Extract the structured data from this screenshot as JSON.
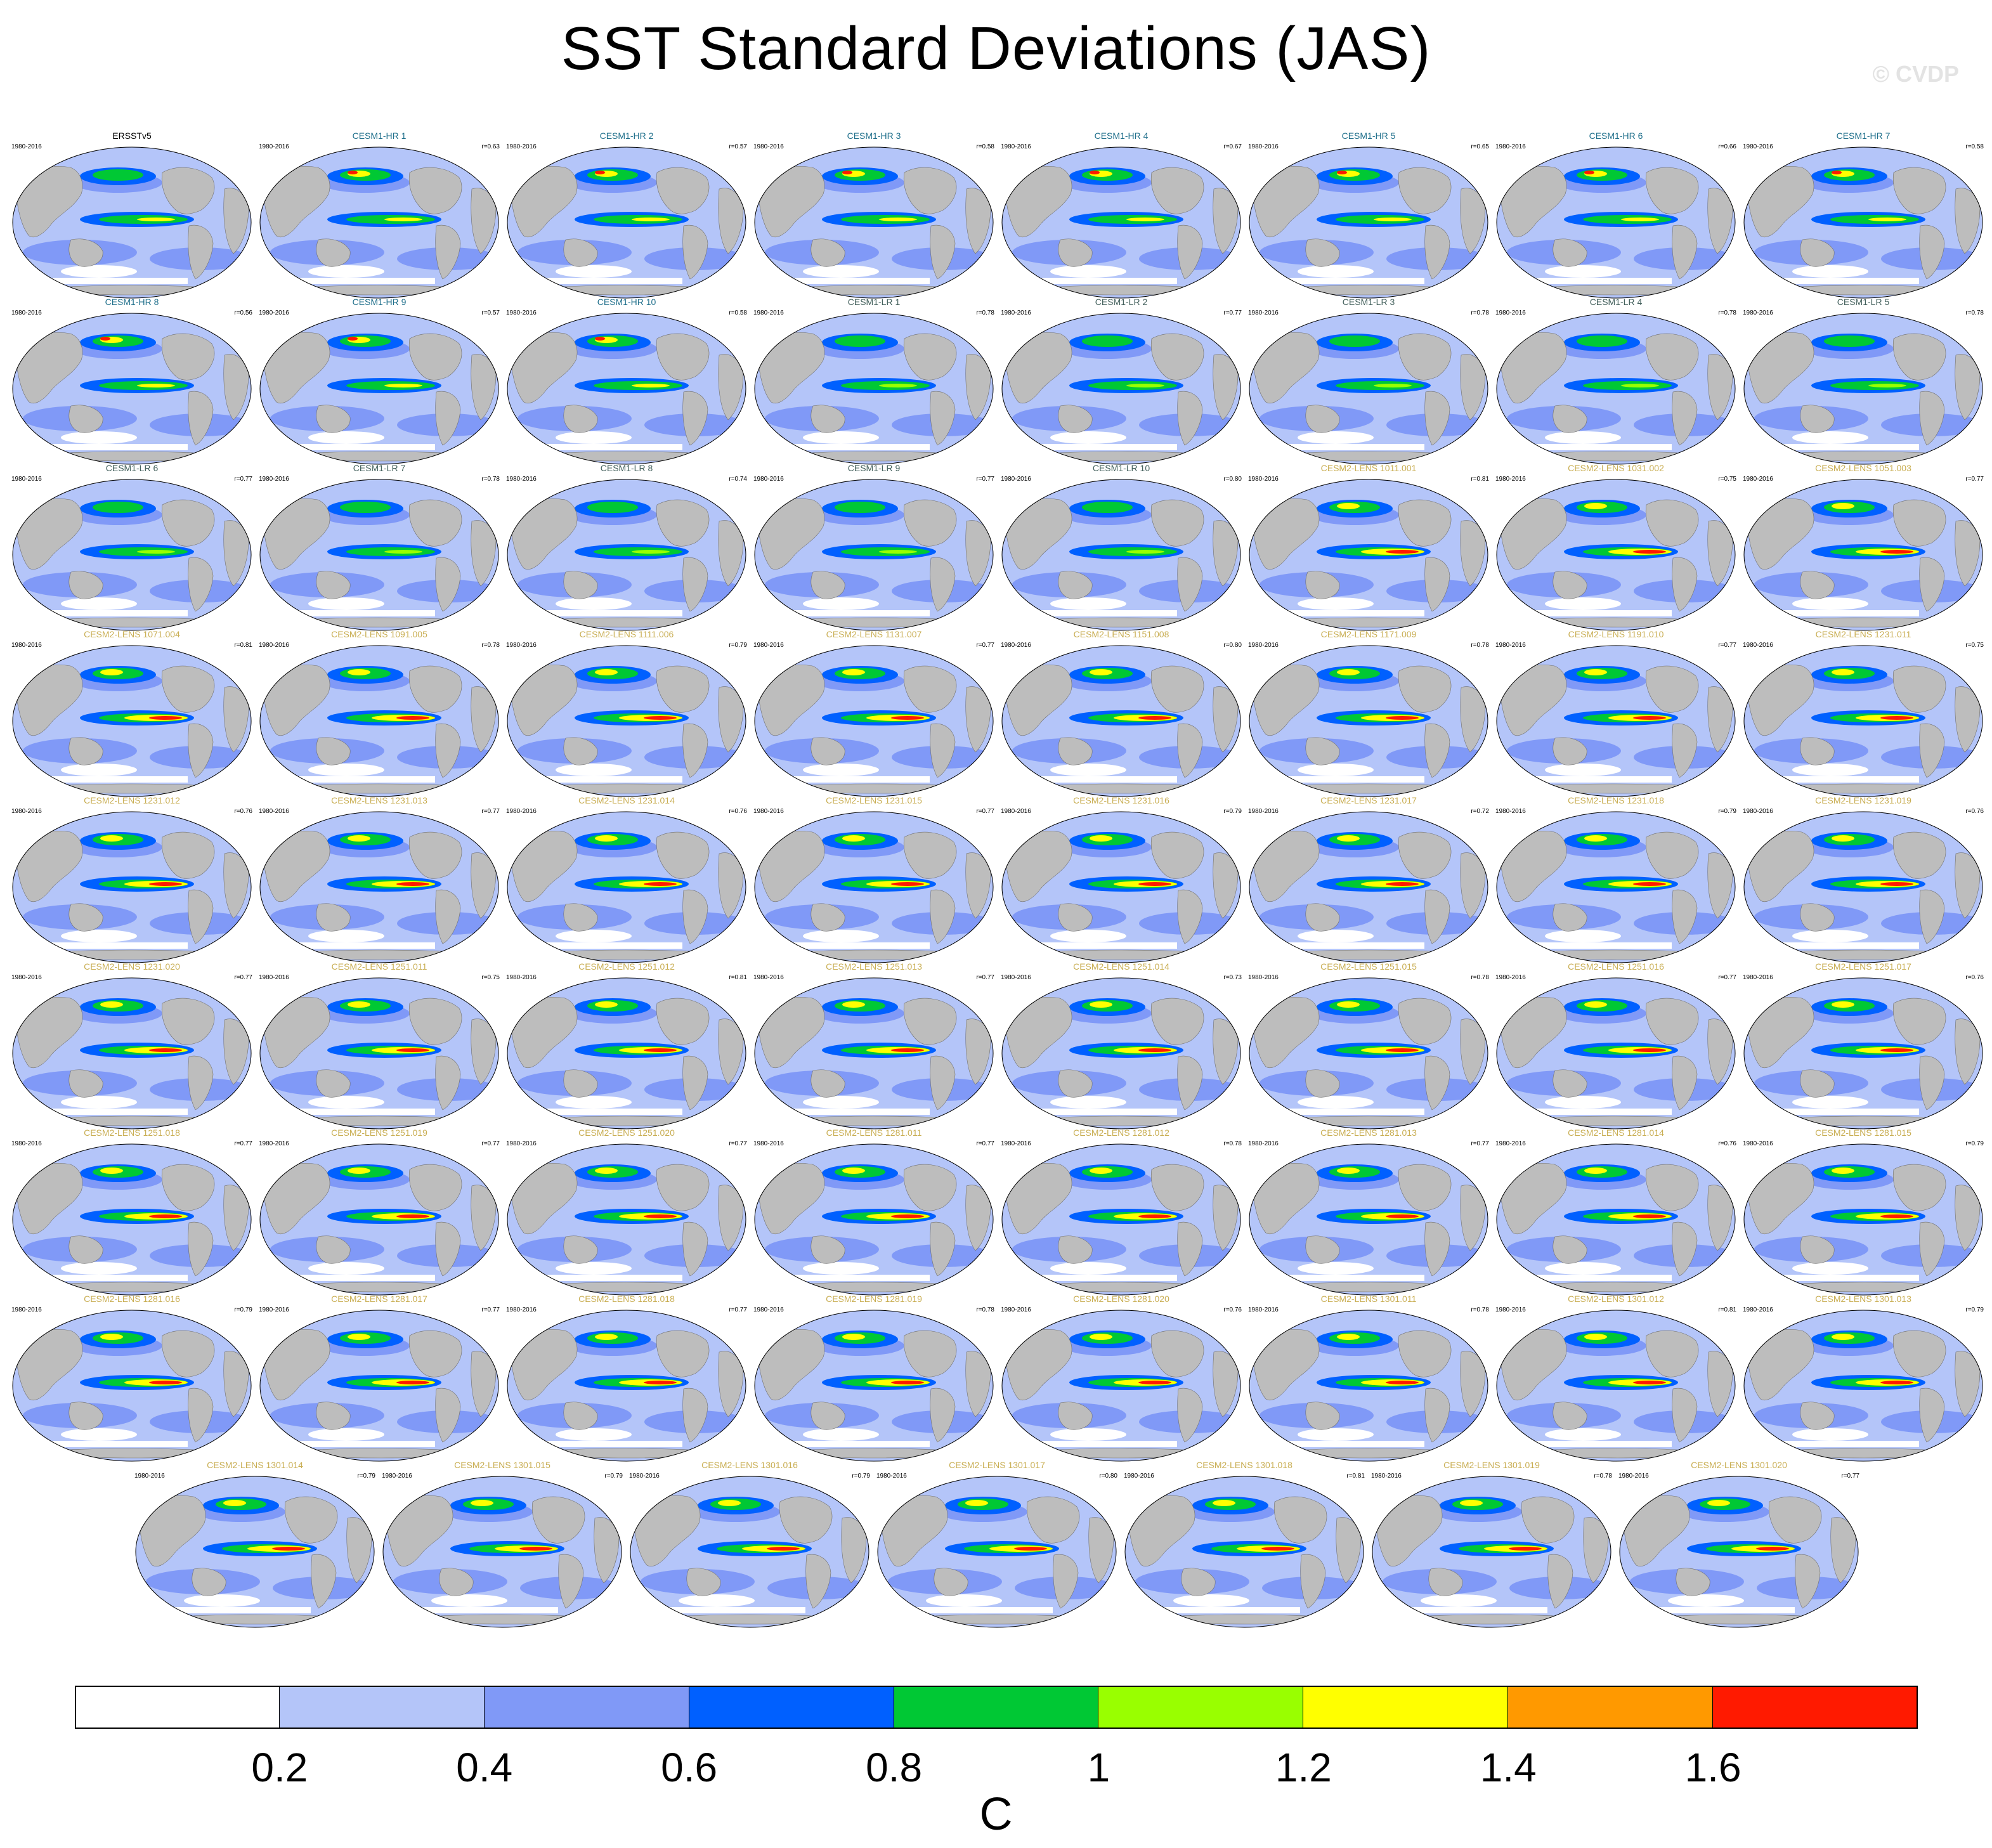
{
  "title": "SST Standard Deviations (JAS)",
  "watermark": "© CVDP",
  "period": "1980-2016",
  "colors": {
    "ocean_base": "#a9bdf8",
    "land": "#bdbdbd",
    "obs_title": "#000000",
    "hr_title": "#1f6f8b",
    "lr_title": "#44615d",
    "lens_title": "#c9ae53"
  },
  "panels": [
    {
      "title": "ERSSTv5",
      "r": "",
      "group": "obs"
    },
    {
      "title": "CESM1-HR 1",
      "r": "r=0.63",
      "group": "hr"
    },
    {
      "title": "CESM1-HR 2",
      "r": "r=0.57",
      "group": "hr"
    },
    {
      "title": "CESM1-HR 3",
      "r": "r=0.58",
      "group": "hr"
    },
    {
      "title": "CESM1-HR 4",
      "r": "r=0.67",
      "group": "hr"
    },
    {
      "title": "CESM1-HR 5",
      "r": "r=0.65",
      "group": "hr"
    },
    {
      "title": "CESM1-HR 6",
      "r": "r=0.66",
      "group": "hr"
    },
    {
      "title": "CESM1-HR 7",
      "r": "r=0.58",
      "group": "hr"
    },
    {
      "title": "CESM1-HR 8",
      "r": "r=0.56",
      "group": "hr"
    },
    {
      "title": "CESM1-HR 9",
      "r": "r=0.57",
      "group": "hr"
    },
    {
      "title": "CESM1-HR 10",
      "r": "r=0.58",
      "group": "hr"
    },
    {
      "title": "CESM1-LR 1",
      "r": "r=0.78",
      "group": "lr"
    },
    {
      "title": "CESM1-LR 2",
      "r": "r=0.77",
      "group": "lr"
    },
    {
      "title": "CESM1-LR 3",
      "r": "r=0.78",
      "group": "lr"
    },
    {
      "title": "CESM1-LR 4",
      "r": "r=0.78",
      "group": "lr"
    },
    {
      "title": "CESM1-LR 5",
      "r": "r=0.78",
      "group": "lr"
    },
    {
      "title": "CESM1-LR 6",
      "r": "r=0.77",
      "group": "lr"
    },
    {
      "title": "CESM1-LR 7",
      "r": "r=0.78",
      "group": "lr"
    },
    {
      "title": "CESM1-LR 8",
      "r": "r=0.74",
      "group": "lr"
    },
    {
      "title": "CESM1-LR 9",
      "r": "r=0.77",
      "group": "lr"
    },
    {
      "title": "CESM1-LR 10",
      "r": "r=0.80",
      "group": "lr"
    },
    {
      "title": "CESM2-LENS 1011.001",
      "r": "r=0.81",
      "group": "lens"
    },
    {
      "title": "CESM2-LENS 1031.002",
      "r": "r=0.75",
      "group": "lens"
    },
    {
      "title": "CESM2-LENS 1051.003",
      "r": "r=0.77",
      "group": "lens"
    },
    {
      "title": "CESM2-LENS 1071.004",
      "r": "r=0.81",
      "group": "lens"
    },
    {
      "title": "CESM2-LENS 1091.005",
      "r": "r=0.78",
      "group": "lens"
    },
    {
      "title": "CESM2-LENS 1111.006",
      "r": "r=0.79",
      "group": "lens"
    },
    {
      "title": "CESM2-LENS 1131.007",
      "r": "r=0.77",
      "group": "lens"
    },
    {
      "title": "CESM2-LENS 1151.008",
      "r": "r=0.80",
      "group": "lens"
    },
    {
      "title": "CESM2-LENS 1171.009",
      "r": "r=0.78",
      "group": "lens"
    },
    {
      "title": "CESM2-LENS 1191.010",
      "r": "r=0.77",
      "group": "lens"
    },
    {
      "title": "CESM2-LENS 1231.011",
      "r": "r=0.75",
      "group": "lens"
    },
    {
      "title": "CESM2-LENS 1231.012",
      "r": "r=0.76",
      "group": "lens"
    },
    {
      "title": "CESM2-LENS 1231.013",
      "r": "r=0.77",
      "group": "lens"
    },
    {
      "title": "CESM2-LENS 1231.014",
      "r": "r=0.76",
      "group": "lens"
    },
    {
      "title": "CESM2-LENS 1231.015",
      "r": "r=0.77",
      "group": "lens"
    },
    {
      "title": "CESM2-LENS 1231.016",
      "r": "r=0.79",
      "group": "lens"
    },
    {
      "title": "CESM2-LENS 1231.017",
      "r": "r=0.72",
      "group": "lens"
    },
    {
      "title": "CESM2-LENS 1231.018",
      "r": "r=0.79",
      "group": "lens"
    },
    {
      "title": "CESM2-LENS 1231.019",
      "r": "r=0.76",
      "group": "lens"
    },
    {
      "title": "CESM2-LENS 1231.020",
      "r": "r=0.77",
      "group": "lens"
    },
    {
      "title": "CESM2-LENS 1251.011",
      "r": "r=0.75",
      "group": "lens"
    },
    {
      "title": "CESM2-LENS 1251.012",
      "r": "r=0.81",
      "group": "lens"
    },
    {
      "title": "CESM2-LENS 1251.013",
      "r": "r=0.77",
      "group": "lens"
    },
    {
      "title": "CESM2-LENS 1251.014",
      "r": "r=0.73",
      "group": "lens"
    },
    {
      "title": "CESM2-LENS 1251.015",
      "r": "r=0.78",
      "group": "lens"
    },
    {
      "title": "CESM2-LENS 1251.016",
      "r": "r=0.77",
      "group": "lens"
    },
    {
      "title": "CESM2-LENS 1251.017",
      "r": "r=0.76",
      "group": "lens"
    },
    {
      "title": "CESM2-LENS 1251.018",
      "r": "r=0.77",
      "group": "lens"
    },
    {
      "title": "CESM2-LENS 1251.019",
      "r": "r=0.77",
      "group": "lens"
    },
    {
      "title": "CESM2-LENS 1251.020",
      "r": "r=0.77",
      "group": "lens"
    },
    {
      "title": "CESM2-LENS 1281.011",
      "r": "r=0.77",
      "group": "lens"
    },
    {
      "title": "CESM2-LENS 1281.012",
      "r": "r=0.78",
      "group": "lens"
    },
    {
      "title": "CESM2-LENS 1281.013",
      "r": "r=0.77",
      "group": "lens"
    },
    {
      "title": "CESM2-LENS 1281.014",
      "r": "r=0.76",
      "group": "lens"
    },
    {
      "title": "CESM2-LENS 1281.015",
      "r": "r=0.79",
      "group": "lens"
    },
    {
      "title": "CESM2-LENS 1281.016",
      "r": "r=0.79",
      "group": "lens"
    },
    {
      "title": "CESM2-LENS 1281.017",
      "r": "r=0.77",
      "group": "lens"
    },
    {
      "title": "CESM2-LENS 1281.018",
      "r": "r=0.77",
      "group": "lens"
    },
    {
      "title": "CESM2-LENS 1281.019",
      "r": "r=0.78",
      "group": "lens"
    },
    {
      "title": "CESM2-LENS 1281.020",
      "r": "r=0.76",
      "group": "lens"
    },
    {
      "title": "CESM2-LENS 1301.011",
      "r": "r=0.78",
      "group": "lens"
    },
    {
      "title": "CESM2-LENS 1301.012",
      "r": "r=0.81",
      "group": "lens"
    },
    {
      "title": "CESM2-LENS 1301.013",
      "r": "r=0.79",
      "group": "lens"
    },
    {
      "title": "CESM2-LENS 1301.014",
      "r": "r=0.79",
      "group": "lens"
    },
    {
      "title": "CESM2-LENS 1301.015",
      "r": "r=0.79",
      "group": "lens"
    },
    {
      "title": "CESM2-LENS 1301.016",
      "r": "r=0.79",
      "group": "lens"
    },
    {
      "title": "CESM2-LENS 1301.017",
      "r": "r=0.80",
      "group": "lens"
    },
    {
      "title": "CESM2-LENS 1301.018",
      "r": "r=0.81",
      "group": "lens"
    },
    {
      "title": "CESM2-LENS 1301.019",
      "r": "r=0.78",
      "group": "lens"
    },
    {
      "title": "CESM2-LENS 1301.020",
      "r": "r=0.77",
      "group": "lens"
    }
  ],
  "colorbar": {
    "colors": [
      "#ffffff",
      "#b4c5f9",
      "#8099f7",
      "#0060ff",
      "#00c834",
      "#99ff00",
      "#ffff00",
      "#ff9900",
      "#ff1a00"
    ],
    "ticks": [
      "0.2",
      "0.4",
      "0.6",
      "0.8",
      "1",
      "1.2",
      "1.4",
      "1.6"
    ],
    "units": "C"
  }
}
